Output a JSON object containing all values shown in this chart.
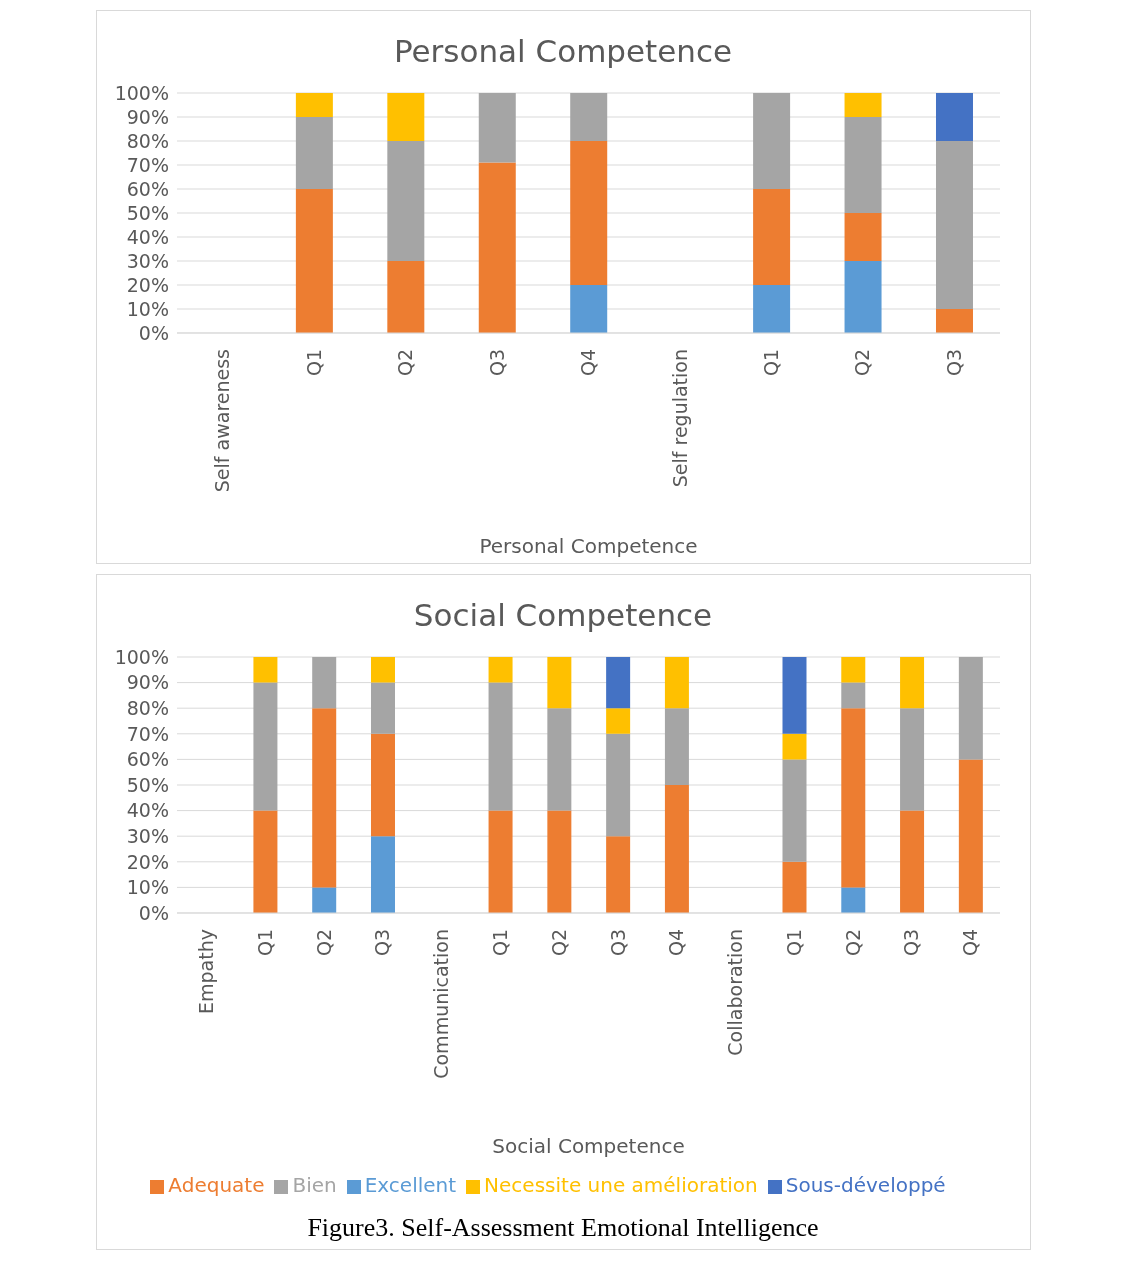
{
  "chart_data": [
    {
      "type": "bar",
      "title": "Personal Competence",
      "xlabel": "Personal Competence",
      "stacked": true,
      "legend": false,
      "grid": "y",
      "categories": [
        "Self awareness",
        "Q1",
        "Q2",
        "Q3",
        "Q4",
        "Self regulation",
        "Q1",
        "Q2",
        "Q3"
      ],
      "ylim": [
        0,
        100
      ],
      "yticks": [
        {
          "value": 0,
          "label": "0%"
        },
        {
          "value": 10,
          "label": "10%"
        },
        {
          "value": 20,
          "label": "20%"
        },
        {
          "value": 30,
          "label": "30%"
        },
        {
          "value": 40,
          "label": "40%"
        },
        {
          "value": 50,
          "label": "50%"
        },
        {
          "value": 60,
          "label": "60%"
        },
        {
          "value": 70,
          "label": "70%"
        },
        {
          "value": 80,
          "label": "80%"
        },
        {
          "value": 90,
          "label": "90%"
        },
        {
          "value": 100,
          "label": "100%"
        }
      ],
      "series": [
        {
          "color": "#5b9bd5",
          "values": [
            null,
            null,
            null,
            null,
            20,
            null,
            20,
            30,
            null
          ]
        },
        {
          "color": "#ed7d31",
          "values": [
            null,
            60,
            30,
            71,
            60,
            null,
            40,
            20,
            10
          ]
        },
        {
          "color": "#a5a5a5",
          "values": [
            null,
            30,
            50,
            29,
            20,
            null,
            40,
            40,
            70
          ]
        },
        {
          "color": "#ffc000",
          "values": [
            null,
            10,
            20,
            null,
            null,
            null,
            null,
            10,
            null
          ]
        },
        {
          "color": "#4472c4",
          "values": [
            null,
            null,
            null,
            null,
            null,
            null,
            null,
            null,
            20
          ]
        }
      ]
    },
    {
      "type": "bar",
      "title": "Social Competence",
      "xlabel": "Social Competence",
      "stacked": true,
      "legend": "bottom",
      "grid": "y",
      "categories": [
        "Empathy",
        "Q1",
        "Q2",
        "Q3",
        "Communication",
        "Q1",
        "Q2",
        "Q3",
        "Q4",
        "Collaboration",
        "Q1",
        "Q2",
        "Q3",
        "Q4"
      ],
      "ylim": [
        0,
        100
      ],
      "yticks": [
        {
          "value": 0,
          "label": "0%"
        },
        {
          "value": 10,
          "label": "10%"
        },
        {
          "value": 20,
          "label": "20%"
        },
        {
          "value": 30,
          "label": "30%"
        },
        {
          "value": 40,
          "label": "40%"
        },
        {
          "value": 50,
          "label": "50%"
        },
        {
          "value": 60,
          "label": "60%"
        },
        {
          "value": 70,
          "label": "70%"
        },
        {
          "value": 80,
          "label": "80%"
        },
        {
          "value": 90,
          "label": "90%"
        },
        {
          "value": 100,
          "label": "100%"
        }
      ],
      "annotations": [
        "Figure3. Self-Assessment Emotional Intelligence"
      ],
      "series": [
        {
          "name": "Excellent",
          "color": "#5b9bd5",
          "values": [
            null,
            null,
            10,
            30,
            null,
            null,
            null,
            null,
            null,
            null,
            null,
            10,
            null,
            null
          ]
        },
        {
          "name": "Adequate",
          "color": "#ed7d31",
          "values": [
            null,
            40,
            70,
            40,
            null,
            40,
            40,
            30,
            50,
            null,
            20,
            70,
            40,
            60
          ]
        },
        {
          "name": "Bien",
          "color": "#a5a5a5",
          "values": [
            null,
            50,
            20,
            20,
            null,
            50,
            40,
            40,
            30,
            null,
            40,
            10,
            40,
            40
          ]
        },
        {
          "name": "Necessite une amélioration",
          "color": "#ffc000",
          "values": [
            null,
            10,
            null,
            10,
            null,
            10,
            20,
            10,
            20,
            null,
            10,
            10,
            20,
            null
          ]
        },
        {
          "name": "Sous-développé",
          "color": "#4472c4",
          "values": [
            null,
            null,
            null,
            null,
            null,
            null,
            null,
            20,
            null,
            null,
            30,
            null,
            null,
            null
          ]
        }
      ]
    }
  ]
}
